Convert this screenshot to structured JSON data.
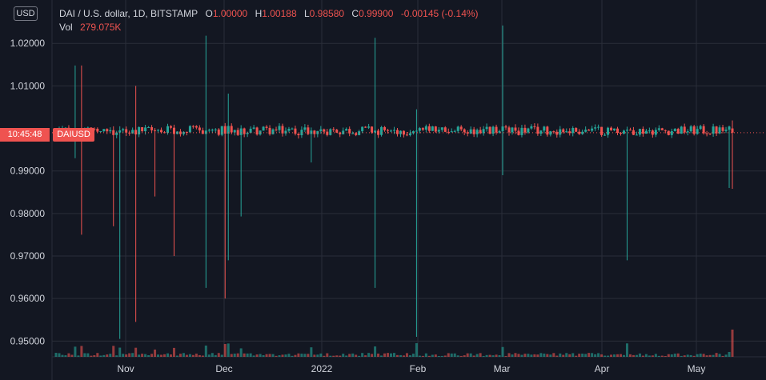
{
  "header": {
    "symbol_title": "DAI / U.S. dollar, 1D, BITSTAMP",
    "open_label": "O",
    "open_value": "1.00000",
    "high_label": "H",
    "high_value": "1.00188",
    "low_label": "L",
    "low_value": "0.98580",
    "close_label": "C",
    "close_value": "0.99900",
    "change_value": "-0.00145 (-0.14%)",
    "volume_label": "Vol",
    "volume_value": "279.075K"
  },
  "currency_button": "USD",
  "price_badge": {
    "time": "10:45:48",
    "symbol": "DAIUSD"
  },
  "colors": {
    "background": "#131722",
    "grid": "#2a2e39",
    "up": "#26a69a",
    "down": "#ef5350",
    "text": "#d1d4dc"
  },
  "chart_data": {
    "type": "candlestick",
    "y_axis": {
      "ticks": [
        "1.02000",
        "1.01000",
        "0.99000",
        "0.98000",
        "0.97000",
        "0.96000",
        "0.95000"
      ],
      "ylim": [
        0.9463,
        1.0302
      ]
    },
    "x_axis": {
      "ticks": [
        "Nov",
        "Dec",
        "2022",
        "Feb",
        "Mar",
        "Apr",
        "May"
      ]
    },
    "last_price": 0.999,
    "spikes": [
      {
        "day": 6,
        "high": 1.0148,
        "low": 0.993
      },
      {
        "day": 8,
        "high": 1.0148,
        "low": 0.975
      },
      {
        "day": 18,
        "high": 1.0005,
        "low": 0.977
      },
      {
        "day": 20,
        "high": 1.0005,
        "low": 0.9505
      },
      {
        "day": 25,
        "high": 1.01,
        "low": 0.9545
      },
      {
        "day": 31,
        "high": 1.0,
        "low": 0.984
      },
      {
        "day": 37,
        "high": 1.0,
        "low": 0.97
      },
      {
        "day": 47,
        "high": 1.0218,
        "low": 0.9625
      },
      {
        "day": 53,
        "high": 1.0008,
        "low": 0.96
      },
      {
        "day": 54,
        "high": 1.0082,
        "low": 0.969
      },
      {
        "day": 58,
        "high": 1.0,
        "low": 0.9793
      },
      {
        "day": 80,
        "high": 0.9995,
        "low": 0.992
      },
      {
        "day": 100,
        "high": 1.0213,
        "low": 0.9625
      },
      {
        "day": 113,
        "high": 1.0045,
        "low": 0.951
      },
      {
        "day": 140,
        "high": 1.0242,
        "low": 0.989
      },
      {
        "day": 179,
        "high": 0.9995,
        "low": 0.969
      },
      {
        "day": 211,
        "high": 0.9993,
        "low": 0.986
      }
    ]
  }
}
